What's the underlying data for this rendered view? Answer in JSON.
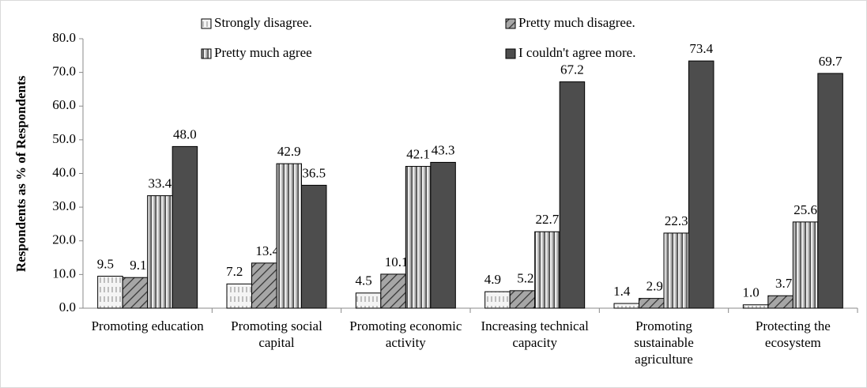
{
  "chart_data": {
    "type": "bar",
    "y_label": "Respondents as % of Respondents",
    "categories": [
      "Promoting education",
      "Promoting social capital",
      "Promoting economic activity",
      "Increasing technical capacity",
      "Promoting sustainable agriculture",
      "Protecting the ecosystem"
    ],
    "series": [
      {
        "name": "Strongly disagree.",
        "color": "#f4f4f4",
        "values": [
          9.5,
          7.2,
          4.5,
          4.9,
          1.4,
          1.0
        ],
        "value_labels": [
          "9.5",
          "7.2",
          "4.5",
          "4.9",
          "1.4",
          "1.0"
        ]
      },
      {
        "name": "Pretty much disagree.",
        "color": "#a6a6a6",
        "values": [
          9.1,
          13.4,
          10.1,
          5.2,
          2.9,
          3.7
        ],
        "value_labels": [
          "9.1",
          "13.4",
          "10.1",
          "5.2",
          "2.9",
          "3.7"
        ]
      },
      {
        "name": "Pretty much agree",
        "color": "#bfbfbf",
        "values": [
          33.4,
          42.9,
          42.1,
          22.7,
          22.3,
          25.6
        ],
        "value_labels": [
          "33.4",
          "42.9",
          "42.1",
          "22.7",
          "22.3",
          "25.6"
        ]
      },
      {
        "name": "I couldn't agree more.",
        "color": "#4d4d4d",
        "values": [
          48.0,
          36.5,
          43.3,
          67.2,
          73.4,
          69.7
        ],
        "value_labels": [
          "48.0",
          "36.5",
          "43.3",
          "67.2",
          "73.4",
          "69.7"
        ]
      }
    ],
    "ylim": [
      0,
      80
    ],
    "yticks": [
      {
        "value": 0,
        "label": "0.0"
      },
      {
        "value": 10,
        "label": "10.0"
      },
      {
        "value": 20,
        "label": "20.0"
      },
      {
        "value": 30,
        "label": "30.0"
      },
      {
        "value": 40,
        "label": "40.0"
      },
      {
        "value": 50,
        "label": "50.0"
      },
      {
        "value": 60,
        "label": "60.0"
      },
      {
        "value": 70,
        "label": "70.0"
      },
      {
        "value": 80,
        "label": "80.0"
      }
    ],
    "grid": false,
    "legend": "top"
  }
}
